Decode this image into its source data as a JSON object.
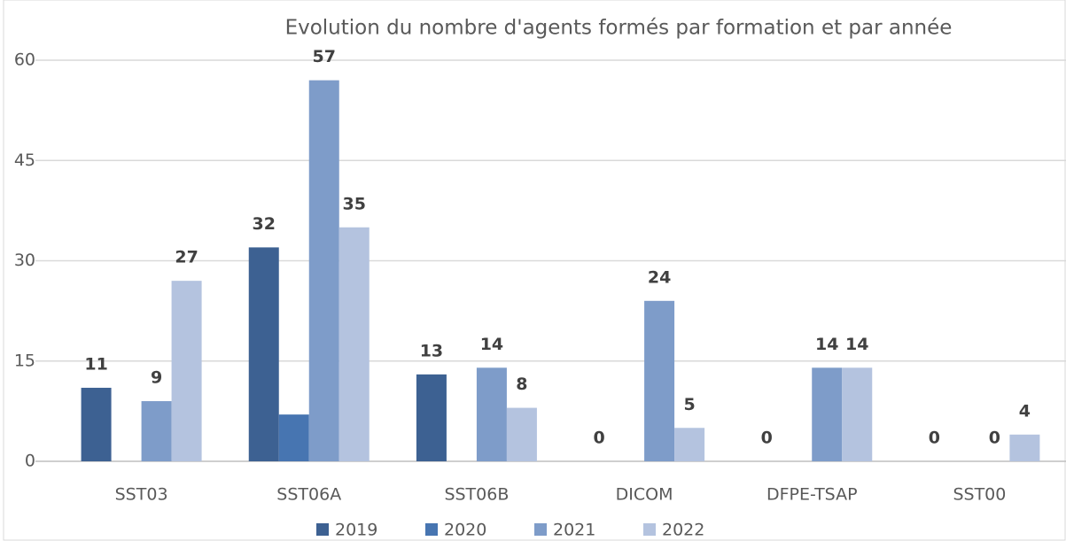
{
  "chart_data": {
    "type": "bar",
    "title": "Evolution du nombre d'agents formés par formation et par année",
    "categories": [
      "SST03",
      "SST06A",
      "SST06B",
      "DICOM",
      "DFPE-TSAP",
      "SST00"
    ],
    "series": [
      {
        "name": "2019",
        "color": "#3d6192",
        "values": [
          11,
          32,
          13,
          0,
          0,
          0
        ],
        "data_labels": true
      },
      {
        "name": "2020",
        "color": "#4775b1",
        "values": [
          null,
          7,
          null,
          null,
          null,
          null
        ],
        "data_labels": false
      },
      {
        "name": "2021",
        "color": "#7e9cc9",
        "values": [
          9,
          57,
          14,
          24,
          14,
          0
        ],
        "data_labels": true
      },
      {
        "name": "2022",
        "color": "#b4c3df",
        "values": [
          27,
          35,
          8,
          5,
          14,
          4
        ],
        "data_labels": true
      }
    ],
    "ylim": [
      0,
      60
    ],
    "yticks": [
      0,
      15,
      30,
      45,
      60
    ],
    "grid": true,
    "legend": "bottom"
  }
}
